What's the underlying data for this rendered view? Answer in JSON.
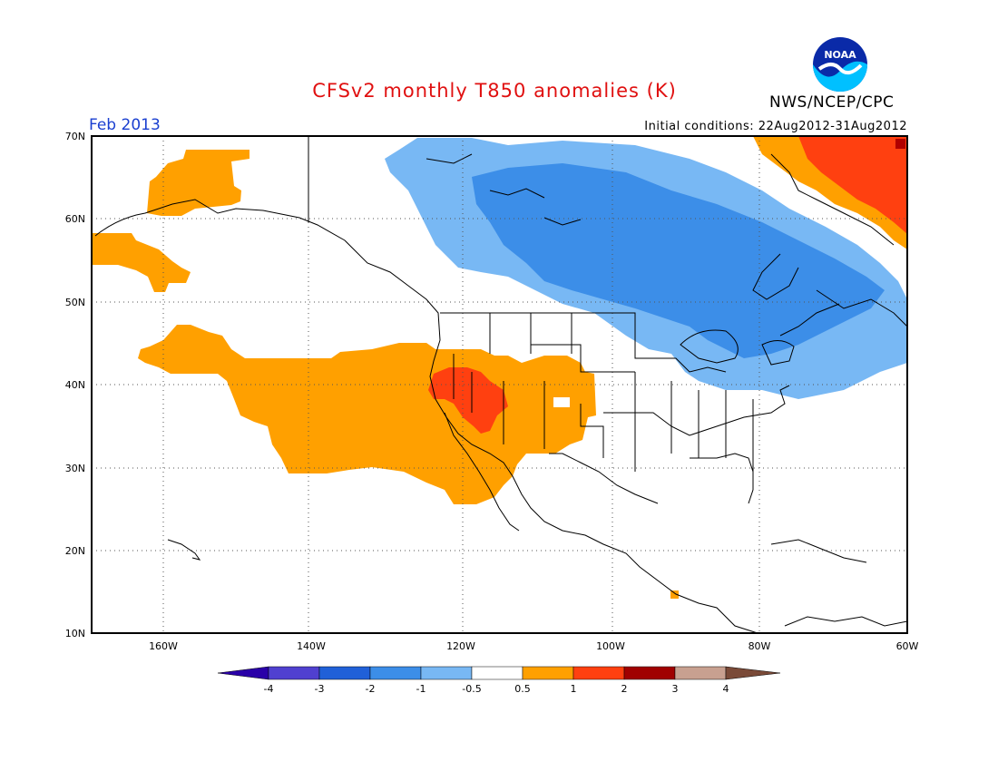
{
  "header": {
    "title": "CFSv2 monthly T850 anomalies (K)",
    "agency": "NWS/NCEP/CPC",
    "logo_text": "NOAA",
    "period": "Feb 2013",
    "initial_conditions": "Initial conditions: 22Aug2012-31Aug2012"
  },
  "axes": {
    "lat_labels": [
      "70N",
      "60N",
      "50N",
      "40N",
      "30N",
      "20N",
      "10N"
    ],
    "lon_labels": [
      "160W",
      "140W",
      "120W",
      "100W",
      "80W",
      "60W"
    ]
  },
  "colorbar": {
    "labels": [
      "-4",
      "-3",
      "-2",
      "-1",
      "-0.5",
      "0.5",
      "1",
      "2",
      "3",
      "4"
    ],
    "colors": [
      "#2a00a8",
      "#5040d0",
      "#2060d8",
      "#3c8ee8",
      "#78b8f4",
      "#ffffff",
      "#ffa000",
      "#ff4010",
      "#a00000",
      "#c8a090",
      "#7a4a38"
    ]
  },
  "colors": {
    "strong_cold": "#3c8ee8",
    "weak_cold": "#78b8f4",
    "weak_warm": "#ffa000",
    "strong_warm": "#ff4010",
    "extreme_warm": "#c80000"
  }
}
